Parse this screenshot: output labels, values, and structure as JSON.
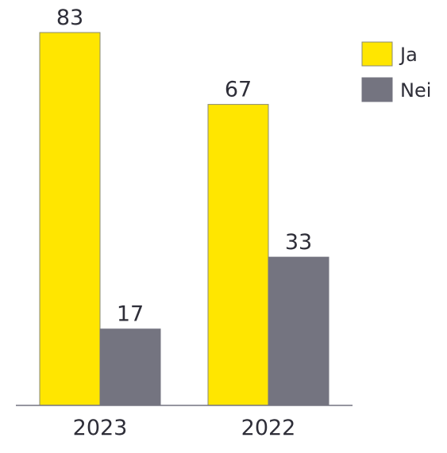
{
  "chart_data": {
    "type": "bar",
    "categories": [
      "2023",
      "2022"
    ],
    "series": [
      {
        "name": "Ja",
        "values": [
          83,
          67
        ],
        "color": "#ffe600"
      },
      {
        "name": "Nei",
        "values": [
          17,
          33
        ],
        "color": "#747480"
      }
    ],
    "ylim": [
      0,
      83
    ],
    "grid": false,
    "legend": "top-right",
    "data_labels": true
  }
}
